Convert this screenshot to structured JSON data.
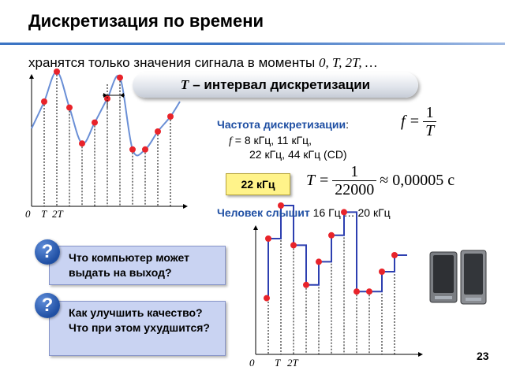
{
  "slide": {
    "title": "Дискретизация по времени",
    "subtitle_text": "хранятся только значения сигнала в моменты ",
    "subtitle_symbols": "0, T, 2T, …",
    "banner_symbol": "T",
    "banner_text": "– интервал дискретизации",
    "page_number": "23"
  },
  "sampling": {
    "freq_label": "Частота дискретизации",
    "freq_colon": ":",
    "formula_lhs": "f =",
    "formula_num": "1",
    "formula_den": "T",
    "freq_symbol": "f",
    "freq_list_line1": " = 8 кГц, 11 кГц,",
    "freq_list_line2": "22 кГц, 44 кГц (CD)",
    "highlight": "22 кГц",
    "period_lhs": "T =",
    "period_num": "1",
    "period_den": "22000",
    "period_rhs": "≈ 0,00005 с"
  },
  "hearing": {
    "label": "Человек слышит",
    "range": " 16 Гц … 20 кГц"
  },
  "questions": [
    {
      "icon": "?",
      "text": "Что компьютер может выдать на выход?"
    },
    {
      "icon": "?",
      "text": "Как улучшить качество? Что при этом ухудшится?"
    }
  ],
  "axis_labels": {
    "origin": "0",
    "t1": "T",
    "t2": "2T"
  },
  "colors": {
    "signal": "#6a8fd6",
    "sample_point": "#e8232a",
    "staircase": "#2d3fb0",
    "accent_blue": "#1f4fa3",
    "highlight": "#fff38a",
    "question_box": "#c9d3f2"
  },
  "chart_data": {
    "type": "line",
    "sample_index": [
      0,
      1,
      2,
      3,
      4,
      5,
      6,
      7,
      8,
      9,
      10
    ],
    "sample_values": [
      3.5,
      4.5,
      3.3,
      2.1,
      2.8,
      3.6,
      4.3,
      1.9,
      1.9,
      2.5,
      3.0
    ],
    "ylim": [
      0,
      6
    ]
  }
}
